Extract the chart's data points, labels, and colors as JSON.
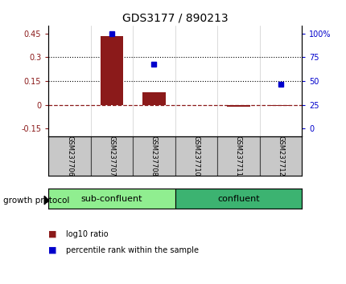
{
  "title": "GDS3177 / 890213",
  "samples": [
    "GSM237706",
    "GSM237707",
    "GSM237708",
    "GSM237710",
    "GSM237711",
    "GSM237712"
  ],
  "log10_ratio": [
    0.0,
    0.435,
    0.08,
    0.0,
    -0.01,
    -0.005
  ],
  "percentile_rank": [
    null,
    100,
    68,
    null,
    null,
    47
  ],
  "bar_color": "#8B1A1A",
  "dot_color": "#0000CC",
  "hline_color": "#8B1A1A",
  "sub_color": "#90EE90",
  "conf_color": "#3CB371",
  "label_bg": "#C8C8C8",
  "title_fontsize": 10,
  "tick_fontsize": 7,
  "label_fontsize": 6,
  "group_fontsize": 8,
  "legend_fontsize": 7
}
